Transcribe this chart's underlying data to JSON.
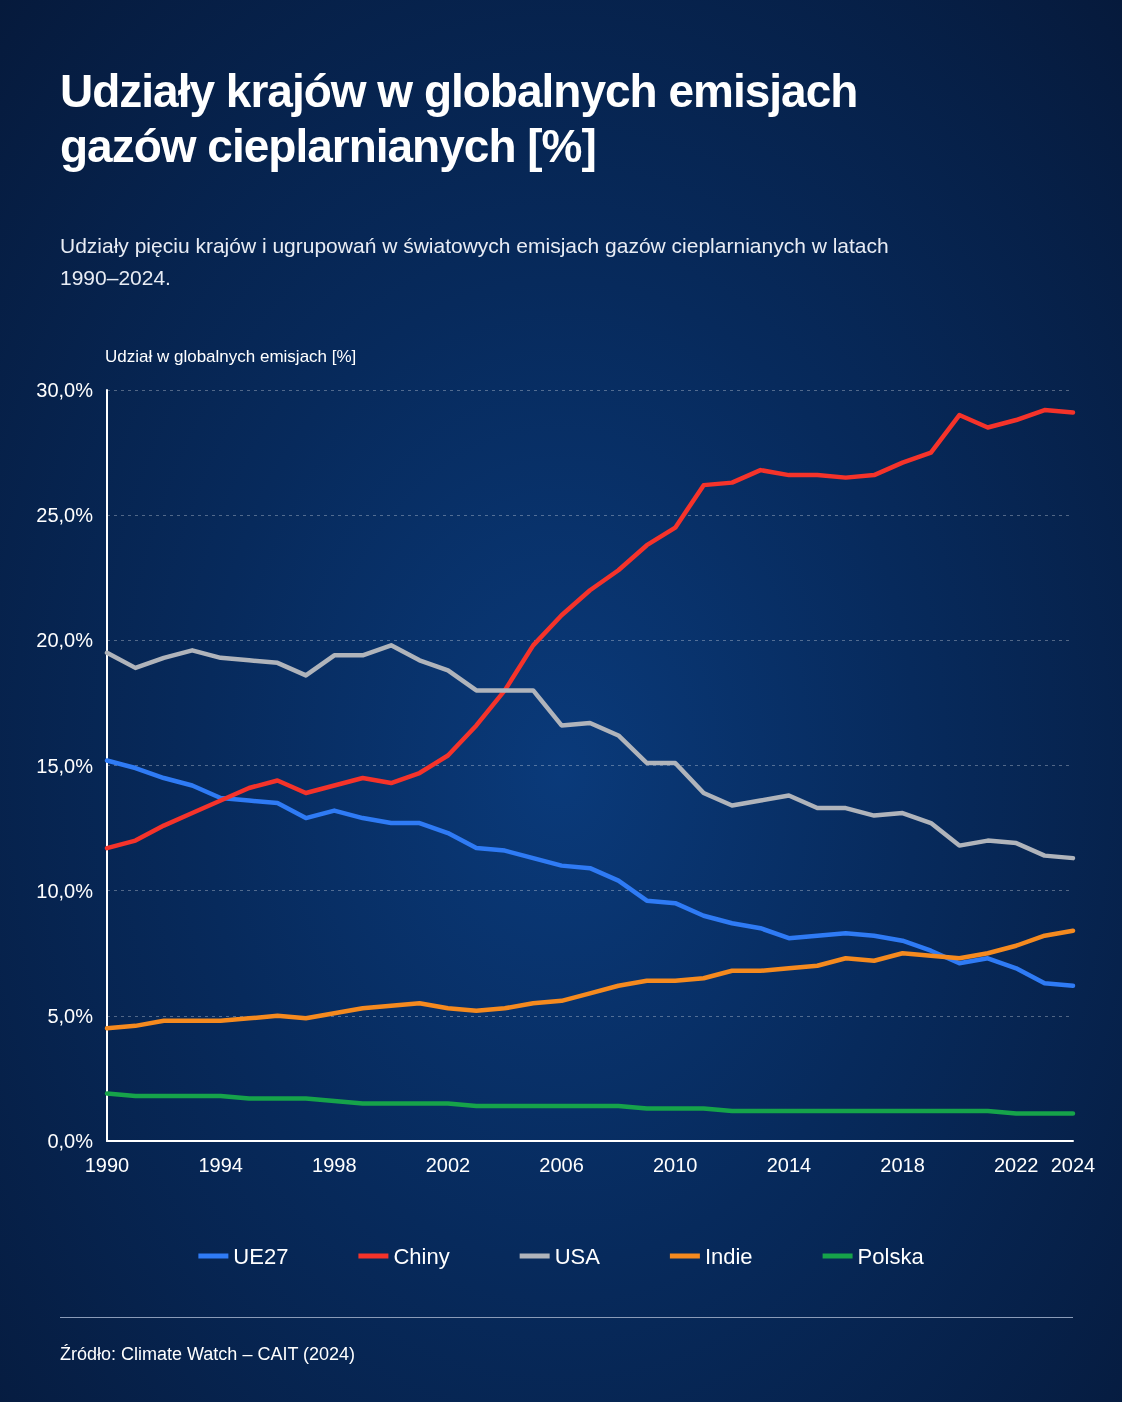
{
  "chart_data": {
    "type": "line",
    "title": "Udziały krajów w globalnych emisjach gazów cieplarnianych [%]",
    "subtitle": "Udziały pięciu krajów i ugrupowań w światowych emisjach gazów cieplarnianych w latach 1990–2024.",
    "ylabel": "Udział w globalnych emisjach [%]",
    "annotations": [
      "Źródło: Climate Watch – CAIT (2024)"
    ],
    "x": [
      1990,
      1991,
      1992,
      1993,
      1994,
      1995,
      1996,
      1997,
      1998,
      1999,
      2000,
      2001,
      2002,
      2003,
      2004,
      2005,
      2006,
      2007,
      2008,
      2009,
      2010,
      2011,
      2012,
      2013,
      2014,
      2015,
      2016,
      2017,
      2018,
      2019,
      2020,
      2021,
      2022,
      2023,
      2024
    ],
    "xlim": [
      1990,
      2024
    ],
    "xticks": [
      1990,
      1994,
      1998,
      2002,
      2006,
      2010,
      2014,
      2018,
      2022,
      2024
    ],
    "ylim": [
      0,
      30
    ],
    "yticks": [
      {
        "value": 0,
        "label": "0,0%"
      },
      {
        "value": 5,
        "label": "5,0%"
      },
      {
        "value": 10,
        "label": "10,0%"
      },
      {
        "value": 15,
        "label": "15,0%"
      },
      {
        "value": 20,
        "label": "20,0%"
      },
      {
        "value": 25,
        "label": "25,0%"
      },
      {
        "value": 30,
        "label": "30,0%"
      }
    ],
    "grid": "y",
    "legend": "bottom",
    "series": [
      {
        "name": "UE27",
        "color": "#2f7bf5",
        "values": [
          15.2,
          14.9,
          14.5,
          14.2,
          13.7,
          13.6,
          13.5,
          12.9,
          13.2,
          12.9,
          12.7,
          12.7,
          12.3,
          11.7,
          11.6,
          11.3,
          11.0,
          10.9,
          10.4,
          9.6,
          9.5,
          9.0,
          8.7,
          8.5,
          8.1,
          8.2,
          8.3,
          8.2,
          8.0,
          7.6,
          7.1,
          7.3,
          6.9,
          6.3,
          6.2
        ]
      },
      {
        "name": "Chiny",
        "color": "#f5332a",
        "values": [
          11.7,
          12.0,
          12.6,
          13.1,
          13.6,
          14.1,
          14.4,
          13.9,
          14.2,
          14.5,
          14.3,
          14.7,
          15.4,
          16.6,
          18.0,
          19.8,
          21.0,
          22.0,
          22.8,
          23.8,
          24.5,
          26.2,
          26.3,
          26.8,
          26.6,
          26.6,
          26.5,
          26.6,
          27.1,
          27.5,
          29.0,
          28.5,
          28.8,
          29.2,
          29.1
        ]
      },
      {
        "name": "USA",
        "color": "#b0b4bb",
        "values": [
          19.5,
          18.9,
          19.3,
          19.6,
          19.3,
          19.2,
          19.1,
          18.6,
          19.4,
          19.4,
          19.8,
          19.2,
          18.8,
          18.0,
          18.0,
          18.0,
          16.6,
          16.7,
          16.2,
          15.1,
          15.1,
          13.9,
          13.4,
          13.6,
          13.8,
          13.3,
          13.3,
          13.0,
          13.1,
          12.7,
          11.8,
          12.0,
          11.9,
          11.4,
          11.3
        ]
      },
      {
        "name": "Indie",
        "color": "#f58a1f",
        "values": [
          4.5,
          4.6,
          4.8,
          4.8,
          4.8,
          4.9,
          5.0,
          4.9,
          5.1,
          5.3,
          5.4,
          5.5,
          5.3,
          5.2,
          5.3,
          5.5,
          5.6,
          5.9,
          6.2,
          6.4,
          6.4,
          6.5,
          6.8,
          6.8,
          6.9,
          7.0,
          7.3,
          7.2,
          7.5,
          7.4,
          7.3,
          7.5,
          7.8,
          8.2,
          8.4
        ]
      },
      {
        "name": "Polska",
        "color": "#16a34a",
        "values": [
          1.9,
          1.8,
          1.8,
          1.8,
          1.8,
          1.7,
          1.7,
          1.7,
          1.6,
          1.5,
          1.5,
          1.5,
          1.5,
          1.4,
          1.4,
          1.4,
          1.4,
          1.4,
          1.4,
          1.3,
          1.3,
          1.3,
          1.2,
          1.2,
          1.2,
          1.2,
          1.2,
          1.2,
          1.2,
          1.2,
          1.2,
          1.2,
          1.1,
          1.1,
          1.1
        ]
      }
    ],
    "line_style": "solid",
    "marker": "none"
  }
}
